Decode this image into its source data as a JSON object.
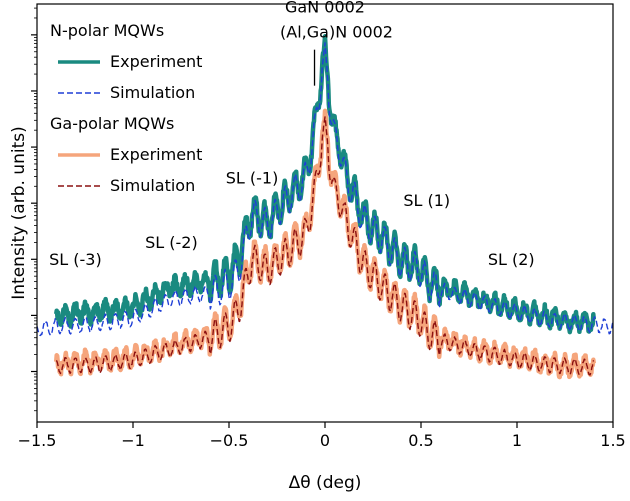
{
  "chart_data": {
    "type": "line",
    "xlabel": "Δθ (deg)",
    "ylabel": "Intensity (arb. units)",
    "xlim": [
      -1.5,
      1.5
    ],
    "x_ticks": [
      -1.5,
      -1,
      -0.5,
      0,
      0.5,
      1,
      1.5
    ],
    "x_tick_labels": [
      "−1.5",
      "−1",
      "−0.5",
      "0",
      "0.5",
      "1",
      "1.5"
    ],
    "y_scale": "log",
    "y_decades": [
      0,
      1,
      2,
      3,
      4,
      5,
      6,
      7
    ],
    "grid": false,
    "legend": {
      "placement": "top-left",
      "groups": [
        {
          "heading": "N-polar MQWs",
          "entries": [
            "Experiment",
            "Simulation"
          ]
        },
        {
          "heading": "Ga-polar MQWs",
          "entries": [
            "Experiment",
            "Simulation"
          ]
        }
      ]
    },
    "series": [
      {
        "name": "Experiment",
        "group": "N-polar MQWs",
        "color": "#1a8a80",
        "style": "solid",
        "x": [
          -1.4,
          -1.2,
          -1.0,
          -0.8,
          -0.6,
          -0.5,
          -0.45,
          -0.38,
          -0.3,
          -0.2,
          -0.1,
          -0.05,
          0.0,
          0.02,
          0.05,
          0.08,
          0.1,
          0.2,
          0.3,
          0.4,
          0.5,
          0.53,
          0.6,
          0.8,
          1.0,
          1.2,
          1.4
        ],
        "y": [
          1.0,
          1.05,
          1.15,
          1.5,
          1.6,
          1.75,
          2.0,
          2.85,
          2.65,
          3.1,
          3.5,
          4.4,
          5.9,
          5.0,
          4.2,
          4.0,
          3.6,
          2.75,
          2.4,
          2.0,
          1.85,
          1.65,
          1.5,
          1.3,
          1.1,
          0.95,
          0.85
        ]
      },
      {
        "name": "Simulation",
        "group": "N-polar MQWs",
        "color": "#1f3fd6",
        "style": "dashed",
        "x": [
          -1.5,
          -1.4,
          -1.2,
          -1.0,
          -0.8,
          -0.6,
          -0.5,
          -0.45,
          -0.38,
          -0.3,
          -0.2,
          -0.1,
          -0.05,
          0.0,
          0.02,
          0.05,
          0.08,
          0.1,
          0.2,
          0.3,
          0.4,
          0.5,
          0.53,
          0.6,
          0.8,
          1.0,
          1.2,
          1.5
        ],
        "y": [
          0.75,
          0.8,
          0.85,
          0.95,
          1.3,
          1.4,
          1.55,
          1.8,
          2.8,
          2.6,
          3.05,
          3.45,
          4.35,
          5.85,
          4.95,
          4.15,
          3.95,
          3.55,
          2.7,
          2.35,
          1.95,
          1.8,
          1.6,
          1.45,
          1.25,
          1.05,
          0.9,
          0.8
        ]
      },
      {
        "name": "Experiment",
        "group": "Ga-polar MQWs",
        "color": "#f5a57c",
        "style": "solid",
        "x": [
          -1.4,
          -1.2,
          -1.0,
          -0.8,
          -0.6,
          -0.5,
          -0.45,
          -0.38,
          -0.3,
          -0.2,
          -0.1,
          -0.05,
          0.0,
          0.02,
          0.05,
          0.08,
          0.1,
          0.2,
          0.3,
          0.4,
          0.5,
          0.53,
          0.6,
          0.8,
          1.0,
          1.2,
          1.4
        ],
        "y": [
          0.15,
          0.18,
          0.25,
          0.45,
          0.65,
          0.85,
          1.15,
          2.05,
          1.85,
          2.15,
          2.5,
          3.3,
          4.6,
          3.9,
          3.2,
          3.1,
          2.8,
          1.95,
          1.55,
          1.2,
          0.95,
          0.75,
          0.6,
          0.4,
          0.25,
          0.12,
          0.1
        ]
      },
      {
        "name": "Simulation",
        "group": "Ga-polar MQWs",
        "color": "#8b1010",
        "style": "dashed",
        "x": [
          -1.4,
          -1.2,
          -1.0,
          -0.8,
          -0.6,
          -0.5,
          -0.45,
          -0.38,
          -0.3,
          -0.2,
          -0.1,
          -0.05,
          0.0,
          0.02,
          0.05,
          0.08,
          0.1,
          0.2,
          0.3,
          0.4,
          0.5,
          0.53,
          0.6,
          0.8,
          1.0,
          1.2,
          1.4
        ],
        "y": [
          0.1,
          0.12,
          0.2,
          0.4,
          0.6,
          0.8,
          1.1,
          2.0,
          1.8,
          2.1,
          2.45,
          3.25,
          4.55,
          3.85,
          3.15,
          3.05,
          2.75,
          1.9,
          1.5,
          1.15,
          0.9,
          0.7,
          0.55,
          0.35,
          0.2,
          0.1,
          0.08
        ]
      }
    ],
    "annotations": [
      {
        "text": "GaN 0002",
        "x": 0.0,
        "y": 6.4
      },
      {
        "text": "(Al,Ga)N 0002",
        "x": 0.06,
        "y": 5.95,
        "marker_line": true
      },
      {
        "text": "SL (-3)",
        "x": -1.3,
        "y": 1.9
      },
      {
        "text": "SL (-2)",
        "x": -0.8,
        "y": 2.2
      },
      {
        "text": "SL (-1)",
        "x": -0.38,
        "y": 3.35
      },
      {
        "text": "SL (1)",
        "x": 0.53,
        "y": 2.95
      },
      {
        "text": "SL (2)",
        "x": 0.97,
        "y": 1.9
      }
    ]
  }
}
